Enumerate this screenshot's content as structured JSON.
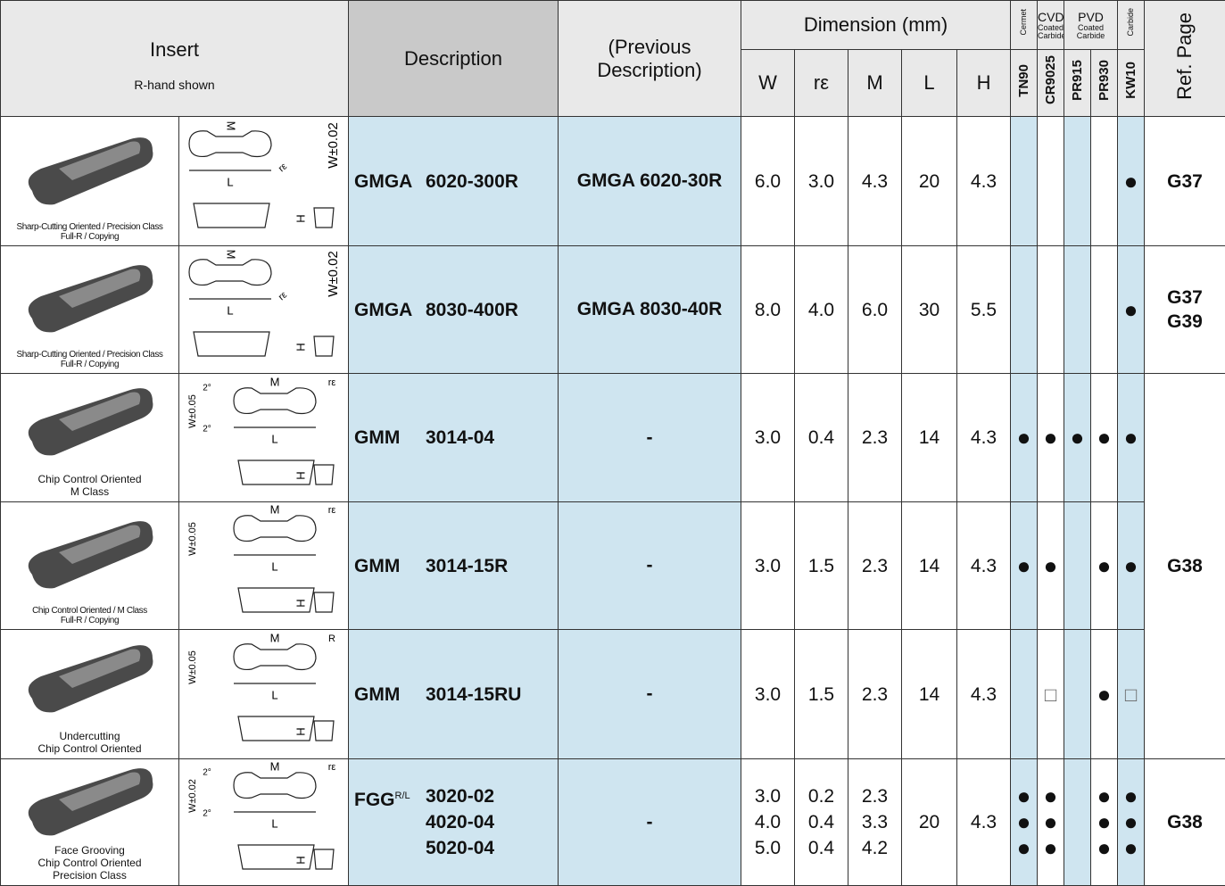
{
  "header": {
    "insert": "Insert",
    "insert_note": "R-hand shown",
    "description": "Description",
    "previous": "(Previous Description)",
    "dimension": "Dimension (mm)",
    "dims": [
      "W",
      "rε",
      "M",
      "L",
      "H"
    ],
    "grade_classes": [
      [
        "Cermet"
      ],
      [
        "CVD",
        "Coated Carbide"
      ],
      [
        "PVD",
        "Coated Carbide"
      ],
      [
        "Carbide"
      ]
    ],
    "grades": [
      "TN90",
      "CR9025",
      "PR915",
      "PR930",
      "KW10"
    ],
    "ref": "Ref. Page"
  },
  "rows": [
    {
      "caption": [
        "Sharp-Cutting Oriented / Precision Class",
        "Full-R / Copying"
      ],
      "drawing": [
        "M",
        "W±0.02",
        "rε",
        "L",
        "H"
      ],
      "series": "GMGA",
      "hand": null,
      "previous": "GMGA 6020-30R",
      "items": [
        {
          "code": "6020-300R",
          "dims": [
            "6.0",
            "3.0",
            "4.3",
            "20",
            "4.3"
          ],
          "grades": [
            null,
            null,
            null,
            null,
            "●"
          ]
        }
      ],
      "ref": [
        "G37"
      ]
    },
    {
      "caption": [
        "Sharp-Cutting Oriented / Precision Class",
        "Full-R / Copying"
      ],
      "drawing": [
        "M",
        "W±0.02",
        "rε",
        "L",
        "H"
      ],
      "series": "GMGA",
      "hand": null,
      "previous": "GMGA 8030-40R",
      "items": [
        {
          "code": "8030-400R",
          "dims": [
            "8.0",
            "4.0",
            "6.0",
            "30",
            "5.5"
          ],
          "grades": [
            null,
            null,
            null,
            null,
            "●"
          ]
        }
      ],
      "ref": [
        "G37",
        "G39"
      ]
    },
    {
      "caption": [
        "Chip Control Oriented",
        "M Class"
      ],
      "drawing": [
        "W±0.05",
        "2°",
        "2°",
        "M",
        "rε",
        "L",
        "H"
      ],
      "series": "GMM",
      "hand": null,
      "previous": "-",
      "items": [
        {
          "code": "3014-04",
          "dims": [
            "3.0",
            "0.4",
            "2.3",
            "14",
            "4.3"
          ],
          "grades": [
            "●",
            "●",
            "●",
            "●",
            "●"
          ]
        }
      ],
      "ref": [
        "G38"
      ]
    },
    {
      "caption": [
        "Chip Control Oriented / M Class",
        "Full-R / Copying"
      ],
      "drawing": [
        "W±0.05",
        "M",
        "rε",
        "L",
        "H"
      ],
      "series": "GMM",
      "hand": null,
      "previous": "-",
      "items": [
        {
          "code": "3014-15R",
          "dims": [
            "3.0",
            "1.5",
            "2.3",
            "14",
            "4.3"
          ],
          "grades": [
            "●",
            "●",
            null,
            "●",
            "●"
          ]
        }
      ]
    },
    {
      "caption": [
        "Undercutting",
        "Chip Control Oriented"
      ],
      "drawing": [
        "W±0.05",
        "M",
        "R",
        "L",
        "H"
      ],
      "series": "GMM",
      "hand": null,
      "previous": "-",
      "items": [
        {
          "code": "3014-15RU",
          "dims": [
            "3.0",
            "1.5",
            "2.3",
            "14",
            "4.3"
          ],
          "grades": [
            null,
            "□",
            null,
            "●",
            "□"
          ]
        }
      ]
    },
    {
      "caption": [
        "Face Grooving",
        "Chip Control Oriented",
        "Precision Class"
      ],
      "drawing": [
        "W±0.02",
        "2°",
        "2°",
        "M",
        "rε",
        "L",
        "H"
      ],
      "series": "FGG",
      "hand": "R/L",
      "previous": "-",
      "items": [
        {
          "code": "3020-02",
          "dims": [
            "3.0",
            "0.2",
            "2.3",
            "20",
            "4.3"
          ],
          "grades": [
            "●",
            "●",
            null,
            "●",
            "●"
          ]
        },
        {
          "code": "4020-04",
          "dims": [
            "4.0",
            "0.4",
            "3.3",
            "20",
            "4.3"
          ],
          "grades": [
            "●",
            "●",
            null,
            "●",
            "●"
          ]
        },
        {
          "code": "5020-04",
          "dims": [
            "5.0",
            "0.4",
            "4.2",
            "20",
            "4.3"
          ],
          "grades": [
            "●",
            "●",
            null,
            "●",
            "●"
          ]
        }
      ],
      "ref": [
        "G38"
      ]
    }
  ]
}
